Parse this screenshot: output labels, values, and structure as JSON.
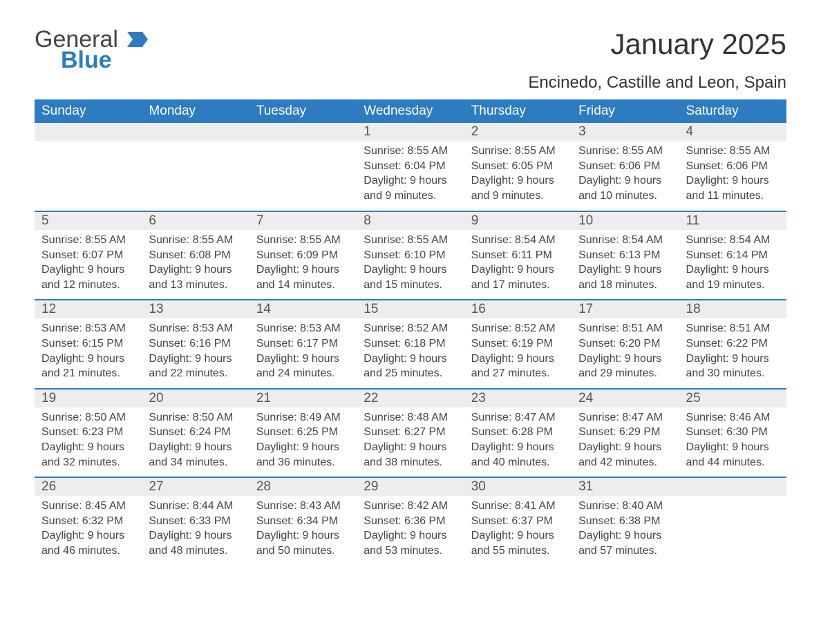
{
  "logo": {
    "text1": "General",
    "text2": "Blue",
    "icon_color": "#2d7cc1"
  },
  "title": "January 2025",
  "location": "Encinedo, Castille and Leon, Spain",
  "colors": {
    "header_bg": "#2d7cc1",
    "header_text": "#ffffff",
    "daynum_bg": "#ededed",
    "body_text": "#444444",
    "rule": "#2d7cc1"
  },
  "day_headers": [
    "Sunday",
    "Monday",
    "Tuesday",
    "Wednesday",
    "Thursday",
    "Friday",
    "Saturday"
  ],
  "weeks": [
    [
      {
        "n": "",
        "sunrise": "",
        "sunset": "",
        "daylight": ""
      },
      {
        "n": "",
        "sunrise": "",
        "sunset": "",
        "daylight": ""
      },
      {
        "n": "",
        "sunrise": "",
        "sunset": "",
        "daylight": ""
      },
      {
        "n": "1",
        "sunrise": "Sunrise: 8:55 AM",
        "sunset": "Sunset: 6:04 PM",
        "daylight": "Daylight: 9 hours and 9 minutes."
      },
      {
        "n": "2",
        "sunrise": "Sunrise: 8:55 AM",
        "sunset": "Sunset: 6:05 PM",
        "daylight": "Daylight: 9 hours and 9 minutes."
      },
      {
        "n": "3",
        "sunrise": "Sunrise: 8:55 AM",
        "sunset": "Sunset: 6:06 PM",
        "daylight": "Daylight: 9 hours and 10 minutes."
      },
      {
        "n": "4",
        "sunrise": "Sunrise: 8:55 AM",
        "sunset": "Sunset: 6:06 PM",
        "daylight": "Daylight: 9 hours and 11 minutes."
      }
    ],
    [
      {
        "n": "5",
        "sunrise": "Sunrise: 8:55 AM",
        "sunset": "Sunset: 6:07 PM",
        "daylight": "Daylight: 9 hours and 12 minutes."
      },
      {
        "n": "6",
        "sunrise": "Sunrise: 8:55 AM",
        "sunset": "Sunset: 6:08 PM",
        "daylight": "Daylight: 9 hours and 13 minutes."
      },
      {
        "n": "7",
        "sunrise": "Sunrise: 8:55 AM",
        "sunset": "Sunset: 6:09 PM",
        "daylight": "Daylight: 9 hours and 14 minutes."
      },
      {
        "n": "8",
        "sunrise": "Sunrise: 8:55 AM",
        "sunset": "Sunset: 6:10 PM",
        "daylight": "Daylight: 9 hours and 15 minutes."
      },
      {
        "n": "9",
        "sunrise": "Sunrise: 8:54 AM",
        "sunset": "Sunset: 6:11 PM",
        "daylight": "Daylight: 9 hours and 17 minutes."
      },
      {
        "n": "10",
        "sunrise": "Sunrise: 8:54 AM",
        "sunset": "Sunset: 6:13 PM",
        "daylight": "Daylight: 9 hours and 18 minutes."
      },
      {
        "n": "11",
        "sunrise": "Sunrise: 8:54 AM",
        "sunset": "Sunset: 6:14 PM",
        "daylight": "Daylight: 9 hours and 19 minutes."
      }
    ],
    [
      {
        "n": "12",
        "sunrise": "Sunrise: 8:53 AM",
        "sunset": "Sunset: 6:15 PM",
        "daylight": "Daylight: 9 hours and 21 minutes."
      },
      {
        "n": "13",
        "sunrise": "Sunrise: 8:53 AM",
        "sunset": "Sunset: 6:16 PM",
        "daylight": "Daylight: 9 hours and 22 minutes."
      },
      {
        "n": "14",
        "sunrise": "Sunrise: 8:53 AM",
        "sunset": "Sunset: 6:17 PM",
        "daylight": "Daylight: 9 hours and 24 minutes."
      },
      {
        "n": "15",
        "sunrise": "Sunrise: 8:52 AM",
        "sunset": "Sunset: 6:18 PM",
        "daylight": "Daylight: 9 hours and 25 minutes."
      },
      {
        "n": "16",
        "sunrise": "Sunrise: 8:52 AM",
        "sunset": "Sunset: 6:19 PM",
        "daylight": "Daylight: 9 hours and 27 minutes."
      },
      {
        "n": "17",
        "sunrise": "Sunrise: 8:51 AM",
        "sunset": "Sunset: 6:20 PM",
        "daylight": "Daylight: 9 hours and 29 minutes."
      },
      {
        "n": "18",
        "sunrise": "Sunrise: 8:51 AM",
        "sunset": "Sunset: 6:22 PM",
        "daylight": "Daylight: 9 hours and 30 minutes."
      }
    ],
    [
      {
        "n": "19",
        "sunrise": "Sunrise: 8:50 AM",
        "sunset": "Sunset: 6:23 PM",
        "daylight": "Daylight: 9 hours and 32 minutes."
      },
      {
        "n": "20",
        "sunrise": "Sunrise: 8:50 AM",
        "sunset": "Sunset: 6:24 PM",
        "daylight": "Daylight: 9 hours and 34 minutes."
      },
      {
        "n": "21",
        "sunrise": "Sunrise: 8:49 AM",
        "sunset": "Sunset: 6:25 PM",
        "daylight": "Daylight: 9 hours and 36 minutes."
      },
      {
        "n": "22",
        "sunrise": "Sunrise: 8:48 AM",
        "sunset": "Sunset: 6:27 PM",
        "daylight": "Daylight: 9 hours and 38 minutes."
      },
      {
        "n": "23",
        "sunrise": "Sunrise: 8:47 AM",
        "sunset": "Sunset: 6:28 PM",
        "daylight": "Daylight: 9 hours and 40 minutes."
      },
      {
        "n": "24",
        "sunrise": "Sunrise: 8:47 AM",
        "sunset": "Sunset: 6:29 PM",
        "daylight": "Daylight: 9 hours and 42 minutes."
      },
      {
        "n": "25",
        "sunrise": "Sunrise: 8:46 AM",
        "sunset": "Sunset: 6:30 PM",
        "daylight": "Daylight: 9 hours and 44 minutes."
      }
    ],
    [
      {
        "n": "26",
        "sunrise": "Sunrise: 8:45 AM",
        "sunset": "Sunset: 6:32 PM",
        "daylight": "Daylight: 9 hours and 46 minutes."
      },
      {
        "n": "27",
        "sunrise": "Sunrise: 8:44 AM",
        "sunset": "Sunset: 6:33 PM",
        "daylight": "Daylight: 9 hours and 48 minutes."
      },
      {
        "n": "28",
        "sunrise": "Sunrise: 8:43 AM",
        "sunset": "Sunset: 6:34 PM",
        "daylight": "Daylight: 9 hours and 50 minutes."
      },
      {
        "n": "29",
        "sunrise": "Sunrise: 8:42 AM",
        "sunset": "Sunset: 6:36 PM",
        "daylight": "Daylight: 9 hours and 53 minutes."
      },
      {
        "n": "30",
        "sunrise": "Sunrise: 8:41 AM",
        "sunset": "Sunset: 6:37 PM",
        "daylight": "Daylight: 9 hours and 55 minutes."
      },
      {
        "n": "31",
        "sunrise": "Sunrise: 8:40 AM",
        "sunset": "Sunset: 6:38 PM",
        "daylight": "Daylight: 9 hours and 57 minutes."
      },
      {
        "n": "",
        "sunrise": "",
        "sunset": "",
        "daylight": ""
      }
    ]
  ]
}
